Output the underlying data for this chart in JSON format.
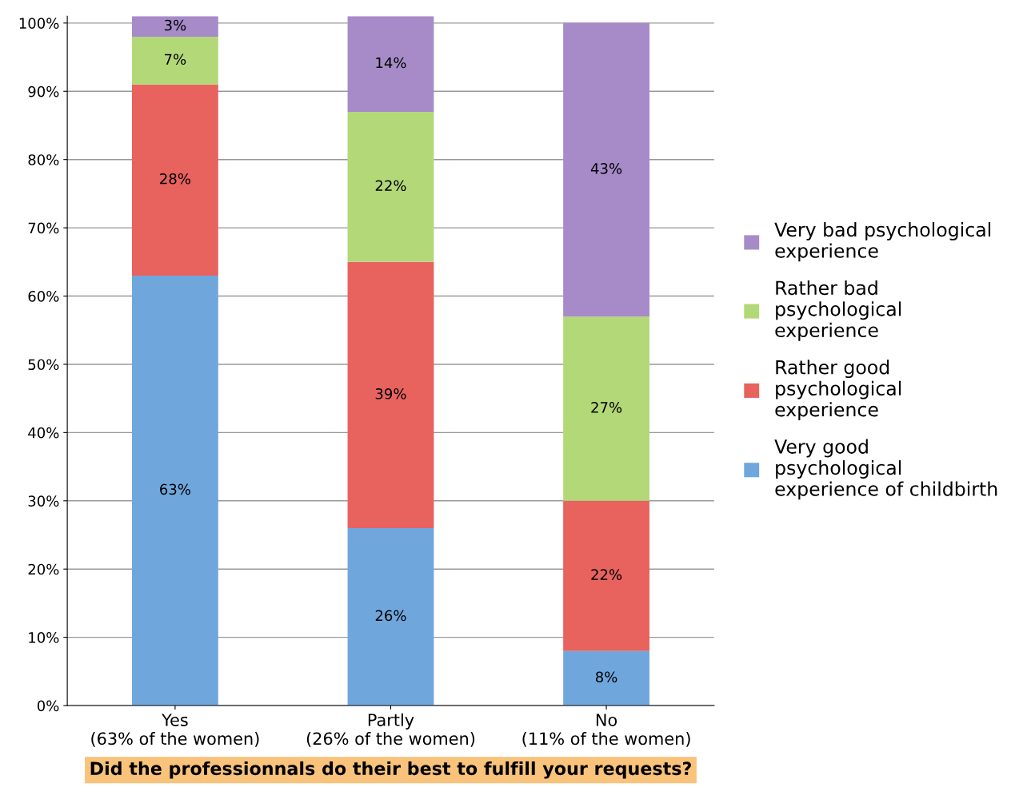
{
  "chart_data": {
    "type": "bar",
    "stacked": true,
    "xlabel": "Did the professionnals do their best to fulfill your requests?",
    "categories": [
      "Yes\n(63% of the women)",
      "Partly\n(26% of the women)",
      "No\n(11% of the women)"
    ],
    "series": [
      {
        "name": "Very good\npsychological\nexperience of childbirth",
        "color": "#6fa7dd",
        "values": [
          63,
          26,
          8
        ],
        "value_labels": [
          "63%",
          "26%",
          "8%"
        ]
      },
      {
        "name": "Rather good\npsychological\nexperience",
        "color": "#e8625e",
        "values": [
          28,
          39,
          22
        ],
        "value_labels": [
          "28%",
          "39%",
          "22%"
        ]
      },
      {
        "name": "Rather bad\npsychological\nexperience",
        "color": "#b3d878",
        "values": [
          7,
          22,
          27
        ],
        "value_labels": [
          "7%",
          "22%",
          "27%"
        ]
      },
      {
        "name": "Very bad psychological\nexperience",
        "color": "#a68bc8",
        "values": [
          3,
          14,
          43
        ],
        "value_labels": [
          "3%",
          "14%",
          "43%"
        ]
      }
    ],
    "ylim": [
      0,
      101
    ],
    "yticks": [
      {
        "value": 0,
        "label": "0%"
      },
      {
        "value": 10,
        "label": "10%"
      },
      {
        "value": 20,
        "label": "20%"
      },
      {
        "value": 30,
        "label": "30%"
      },
      {
        "value": 40,
        "label": "40%"
      },
      {
        "value": 50,
        "label": "50%"
      },
      {
        "value": 60,
        "label": "60%"
      },
      {
        "value": 70,
        "label": "70%"
      },
      {
        "value": 80,
        "label": "80%"
      },
      {
        "value": 90,
        "label": "90%"
      },
      {
        "value": 100,
        "label": "100%"
      }
    ],
    "grid": "y",
    "legend": "right"
  }
}
